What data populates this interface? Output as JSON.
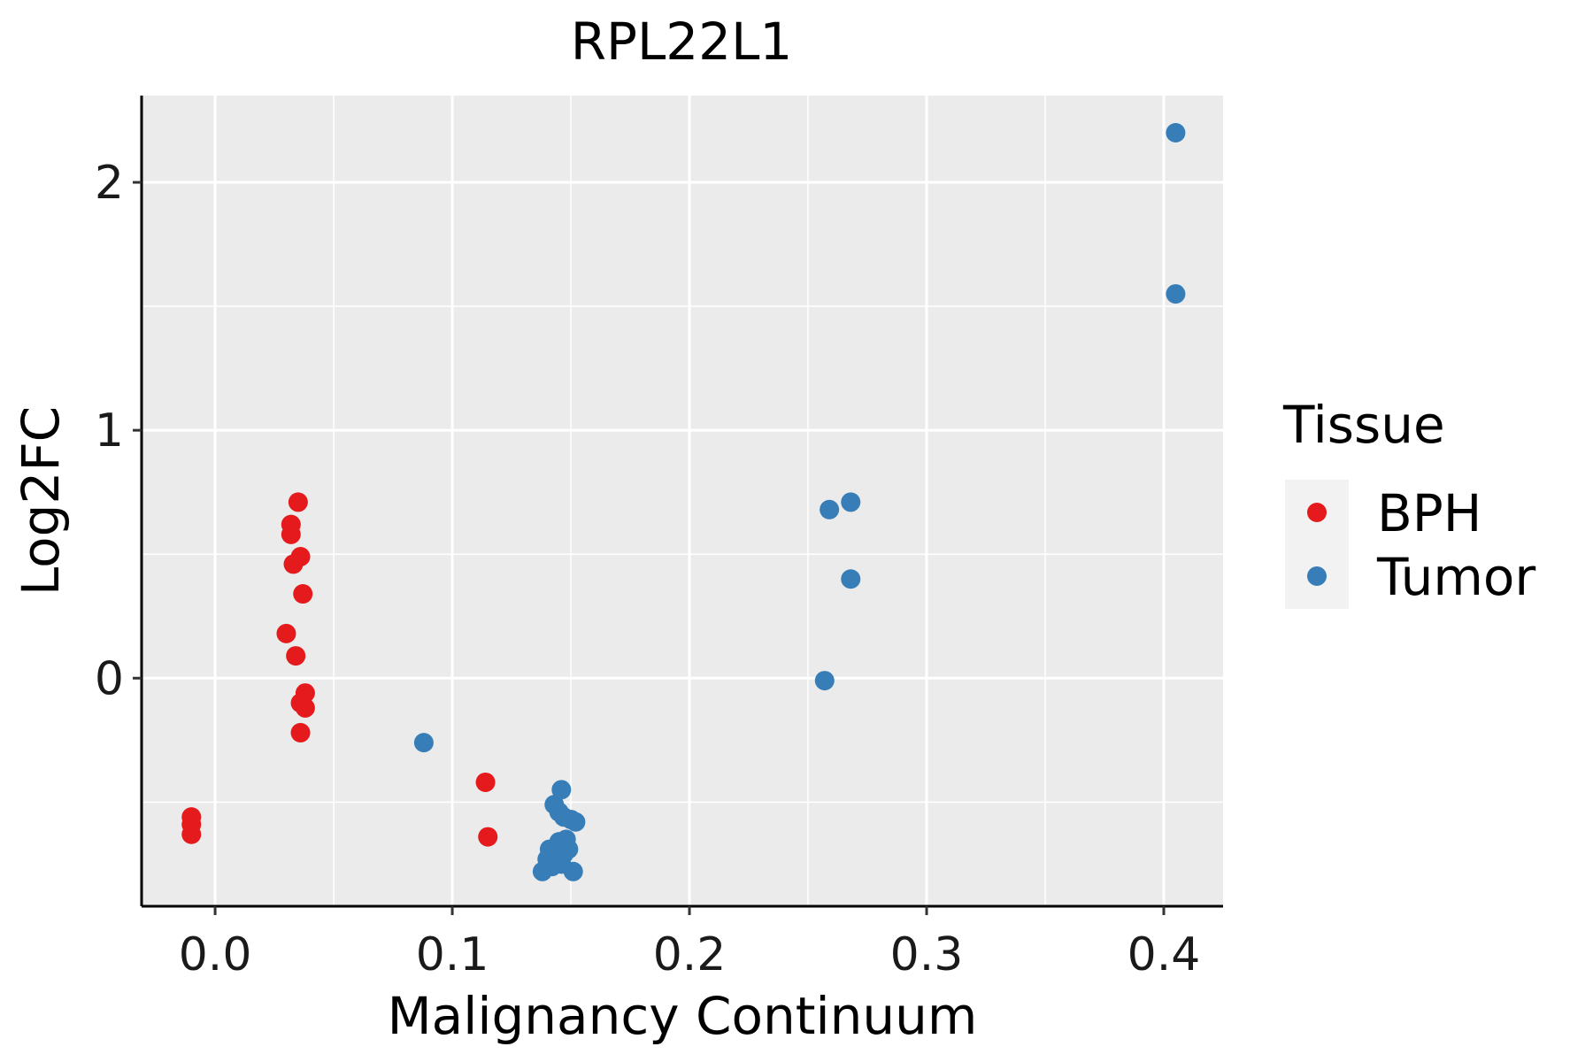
{
  "chart_data": {
    "type": "scatter",
    "title": "RPL22L1",
    "xlabel": "Malignancy Continuum",
    "ylabel": "Log2FC",
    "xlim": [
      -0.031,
      0.425
    ],
    "ylim": [
      -0.92,
      2.35
    ],
    "x_ticks": [
      0.0,
      0.1,
      0.2,
      0.3,
      0.4
    ],
    "x_tick_labels": [
      "0.0",
      "0.1",
      "0.2",
      "0.3",
      "0.4"
    ],
    "y_ticks": [
      0,
      1,
      2
    ],
    "y_tick_labels": [
      "0",
      "1",
      "2"
    ],
    "grid": true,
    "legend": {
      "title": "Tissue",
      "position": "right",
      "entries": [
        "BPH",
        "Tumor"
      ]
    },
    "series": [
      {
        "name": "BPH",
        "color": "#e41a1c",
        "points": [
          [
            -0.01,
            -0.56
          ],
          [
            -0.01,
            -0.59
          ],
          [
            -0.01,
            -0.63
          ],
          [
            0.035,
            0.71
          ],
          [
            0.032,
            0.62
          ],
          [
            0.032,
            0.58
          ],
          [
            0.036,
            0.49
          ],
          [
            0.033,
            0.46
          ],
          [
            0.037,
            0.34
          ],
          [
            0.03,
            0.18
          ],
          [
            0.034,
            0.09
          ],
          [
            0.038,
            -0.06
          ],
          [
            0.036,
            -0.1
          ],
          [
            0.038,
            -0.12
          ],
          [
            0.036,
            -0.22
          ],
          [
            0.114,
            -0.42
          ],
          [
            0.115,
            -0.64
          ]
        ]
      },
      {
        "name": "Tumor",
        "color": "#377eb8",
        "points": [
          [
            0.405,
            2.2
          ],
          [
            0.405,
            1.55
          ],
          [
            0.268,
            0.71
          ],
          [
            0.259,
            0.68
          ],
          [
            0.268,
            0.4
          ],
          [
            0.257,
            -0.01
          ],
          [
            0.088,
            -0.26
          ],
          [
            0.146,
            -0.45
          ],
          [
            0.143,
            -0.51
          ],
          [
            0.145,
            -0.54
          ],
          [
            0.147,
            -0.56
          ],
          [
            0.15,
            -0.57
          ],
          [
            0.152,
            -0.58
          ],
          [
            0.148,
            -0.65
          ],
          [
            0.145,
            -0.66
          ],
          [
            0.141,
            -0.69
          ],
          [
            0.149,
            -0.69
          ],
          [
            0.143,
            -0.71
          ],
          [
            0.147,
            -0.71
          ],
          [
            0.14,
            -0.73
          ],
          [
            0.144,
            -0.74
          ],
          [
            0.146,
            -0.75
          ],
          [
            0.142,
            -0.76
          ],
          [
            0.138,
            -0.78
          ],
          [
            0.151,
            -0.78
          ]
        ]
      }
    ]
  }
}
